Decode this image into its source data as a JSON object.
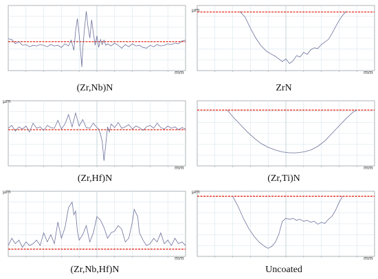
{
  "figure": {
    "y_unit": "µm",
    "x_unit": "mm"
  },
  "chart_data": [
    {
      "type": "line",
      "caption": "(Zr,Nb)N",
      "show_y_unit": false,
      "reference_y": 0.0,
      "ylim": [
        -4,
        5
      ],
      "xlim": [
        0,
        1
      ],
      "grid": true,
      "x": [
        0.0,
        0.02,
        0.04,
        0.06,
        0.08,
        0.1,
        0.12,
        0.14,
        0.16,
        0.18,
        0.2,
        0.22,
        0.24,
        0.26,
        0.28,
        0.3,
        0.32,
        0.34,
        0.355,
        0.37,
        0.38,
        0.39,
        0.4,
        0.41,
        0.415,
        0.42,
        0.43,
        0.44,
        0.45,
        0.46,
        0.47,
        0.48,
        0.49,
        0.5,
        0.51,
        0.52,
        0.53,
        0.54,
        0.55,
        0.56,
        0.58,
        0.6,
        0.62,
        0.64,
        0.66,
        0.68,
        0.7,
        0.72,
        0.74,
        0.76,
        0.78,
        0.8,
        0.82,
        0.84,
        0.86,
        0.88,
        0.9,
        0.92,
        0.94,
        0.96,
        0.98,
        1.0
      ],
      "y": [
        0.4,
        0.3,
        -0.3,
        0.0,
        -0.5,
        -0.4,
        -0.7,
        -0.5,
        -0.6,
        -0.4,
        -0.5,
        -0.7,
        -0.4,
        -0.6,
        -0.5,
        -0.8,
        -0.3,
        -0.6,
        0.2,
        -1.2,
        1.5,
        3.2,
        1.0,
        -2.0,
        -3.5,
        -1.0,
        1.8,
        4.2,
        2.0,
        0.5,
        3.0,
        1.2,
        -0.5,
        0.8,
        -0.8,
        0.3,
        -0.4,
        0.2,
        -0.5,
        -0.3,
        -0.6,
        -0.2,
        -0.5,
        -0.9,
        -0.4,
        -0.7,
        -0.3,
        -0.6,
        -0.5,
        -0.8,
        -0.9,
        -0.5,
        -0.7,
        -0.4,
        -0.6,
        -0.5,
        -0.3,
        -0.4,
        -0.2,
        -0.3,
        0.1,
        0.2
      ]
    },
    {
      "type": "line",
      "caption": "ZrN",
      "show_y_unit": true,
      "reference_y": 0.0,
      "ylim": [
        -9,
        1
      ],
      "xlim": [
        0,
        1
      ],
      "grid": true,
      "x": [
        0.24,
        0.27,
        0.3,
        0.33,
        0.36,
        0.39,
        0.42,
        0.44,
        0.46,
        0.48,
        0.5,
        0.52,
        0.54,
        0.56,
        0.58,
        0.6,
        0.62,
        0.64,
        0.66,
        0.68,
        0.7,
        0.72,
        0.74,
        0.76,
        0.78,
        0.8,
        0.82,
        0.84
      ],
      "y": [
        0.1,
        -0.8,
        -2.5,
        -4.0,
        -5.2,
        -6.0,
        -6.5,
        -6.8,
        -7.2,
        -7.6,
        -7.2,
        -7.9,
        -7.5,
        -6.7,
        -6.9,
        -6.2,
        -6.5,
        -5.8,
        -5.5,
        -5.6,
        -5.0,
        -4.6,
        -4.2,
        -3.3,
        -2.3,
        -1.3,
        -0.5,
        0.1
      ]
    },
    {
      "type": "line",
      "caption": "(Zr,Hf)N",
      "show_y_unit": true,
      "reference_y": 0.0,
      "ylim": [
        -5,
        4
      ],
      "xlim": [
        0,
        1
      ],
      "grid": true,
      "x": [
        0.0,
        0.02,
        0.04,
        0.06,
        0.08,
        0.1,
        0.12,
        0.14,
        0.16,
        0.18,
        0.2,
        0.22,
        0.24,
        0.26,
        0.28,
        0.3,
        0.32,
        0.34,
        0.36,
        0.38,
        0.4,
        0.42,
        0.44,
        0.46,
        0.48,
        0.5,
        0.51,
        0.52,
        0.53,
        0.54,
        0.55,
        0.56,
        0.57,
        0.58,
        0.6,
        0.62,
        0.64,
        0.66,
        0.68,
        0.7,
        0.72,
        0.74,
        0.76,
        0.78,
        0.8,
        0.82,
        0.84,
        0.86,
        0.88,
        0.9,
        0.92,
        0.94,
        0.96,
        0.98,
        1.0
      ],
      "y": [
        0.2,
        0.6,
        -0.2,
        0.4,
        0.1,
        0.5,
        -0.3,
        0.9,
        0.2,
        0.4,
        -0.1,
        0.6,
        0.3,
        0.2,
        1.3,
        0.1,
        0.8,
        2.1,
        0.4,
        2.3,
        0.5,
        1.4,
        0.3,
        0.2,
        0.9,
        0.3,
        0.1,
        -0.6,
        -1.6,
        -4.3,
        -2.0,
        0.4,
        -0.3,
        0.8,
        0.3,
        1.0,
        0.2,
        0.4,
        0.7,
        0.1,
        0.5,
        0.3,
        -0.1,
        0.4,
        0.6,
        0.2,
        0.9,
        0.3,
        0.1,
        0.5,
        0.2,
        0.4,
        0.0,
        0.3,
        0.1
      ]
    },
    {
      "type": "line",
      "caption": "(Zr,Ti)N",
      "show_y_unit": false,
      "reference_y": 0.0,
      "ylim": [
        -6,
        1
      ],
      "xlim": [
        0,
        1
      ],
      "grid": true,
      "x": [
        0.17,
        0.2,
        0.24,
        0.28,
        0.32,
        0.36,
        0.4,
        0.44,
        0.48,
        0.52,
        0.56,
        0.6,
        0.64,
        0.68,
        0.72,
        0.76,
        0.8,
        0.84,
        0.88,
        0.9
      ],
      "y": [
        0.0,
        -0.7,
        -1.5,
        -2.3,
        -3.0,
        -3.6,
        -4.0,
        -4.3,
        -4.5,
        -4.6,
        -4.6,
        -4.5,
        -4.3,
        -3.9,
        -3.3,
        -2.5,
        -1.7,
        -0.9,
        -0.2,
        0.0
      ]
    },
    {
      "type": "line",
      "caption": "(Zr,Nb,Hf)N",
      "show_y_unit": true,
      "reference_y": 0.0,
      "ylim": [
        -0.4,
        3.2
      ],
      "xlim": [
        0,
        1
      ],
      "grid": true,
      "x": [
        0.0,
        0.02,
        0.04,
        0.06,
        0.08,
        0.1,
        0.12,
        0.14,
        0.16,
        0.18,
        0.2,
        0.22,
        0.24,
        0.26,
        0.28,
        0.3,
        0.32,
        0.34,
        0.36,
        0.37,
        0.38,
        0.39,
        0.4,
        0.42,
        0.44,
        0.46,
        0.48,
        0.5,
        0.52,
        0.54,
        0.56,
        0.58,
        0.6,
        0.62,
        0.64,
        0.66,
        0.68,
        0.7,
        0.71,
        0.72,
        0.73,
        0.74,
        0.76,
        0.78,
        0.8,
        0.82,
        0.84,
        0.86,
        0.88,
        0.9,
        0.92,
        0.94,
        0.96,
        0.98,
        1.0
      ],
      "y": [
        0.2,
        0.6,
        0.3,
        0.5,
        0.1,
        0.4,
        0.2,
        0.3,
        0.5,
        0.2,
        0.9,
        0.4,
        0.8,
        0.3,
        1.5,
        0.6,
        1.2,
        2.3,
        2.6,
        1.9,
        2.1,
        1.0,
        0.5,
        0.8,
        1.3,
        0.4,
        0.9,
        1.8,
        1.6,
        1.2,
        0.6,
        0.9,
        1.0,
        1.3,
        1.1,
        0.4,
        0.6,
        1.5,
        2.2,
        2.0,
        1.8,
        0.9,
        0.5,
        0.2,
        0.3,
        0.6,
        0.4,
        0.9,
        0.3,
        0.5,
        0.2,
        0.6,
        0.3,
        0.4,
        0.2
      ]
    },
    {
      "type": "line",
      "caption": "Uncoated",
      "show_y_unit": true,
      "reference_y": 0.0,
      "ylim": [
        -6,
        0.5
      ],
      "xlim": [
        0,
        1
      ],
      "grid": true,
      "x": [
        0.2,
        0.23,
        0.26,
        0.29,
        0.32,
        0.35,
        0.38,
        0.4,
        0.42,
        0.44,
        0.46,
        0.48,
        0.5,
        0.52,
        0.54,
        0.56,
        0.58,
        0.6,
        0.62,
        0.64,
        0.66,
        0.68,
        0.7,
        0.72,
        0.74,
        0.76,
        0.78,
        0.8,
        0.82
      ],
      "y": [
        0.0,
        -1.0,
        -2.2,
        -3.2,
        -4.0,
        -4.6,
        -5.0,
        -5.2,
        -5.0,
        -4.6,
        -3.8,
        -2.5,
        -2.2,
        -2.3,
        -2.2,
        -2.4,
        -2.3,
        -2.5,
        -2.4,
        -2.6,
        -2.5,
        -2.8,
        -2.6,
        -2.7,
        -2.3,
        -2.0,
        -1.4,
        -0.6,
        0.0
      ]
    }
  ]
}
